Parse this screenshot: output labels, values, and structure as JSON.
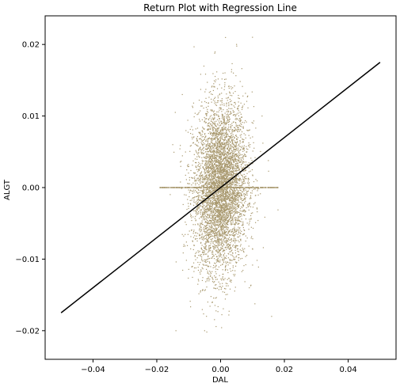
{
  "chart_data": {
    "type": "scatter",
    "title": "Return Plot with Regression Line",
    "xlabel": "DAL",
    "ylabel": "ALGT",
    "xlim": [
      -0.055,
      0.055
    ],
    "ylim": [
      -0.024,
      0.024
    ],
    "xticks": [
      -0.04,
      -0.02,
      0.0,
      0.02,
      0.04
    ],
    "xtick_labels": [
      "−0.04",
      "−0.02",
      "0.00",
      "0.02",
      "0.04"
    ],
    "yticks": [
      -0.02,
      -0.01,
      0.0,
      0.01,
      0.02
    ],
    "ytick_labels": [
      "−0.02",
      "−0.01",
      "0.00",
      "0.01",
      "0.02"
    ],
    "grid": false,
    "colors": {
      "points": "#a8986e",
      "regression_line": "#000000"
    },
    "series": [
      {
        "type": "scatter",
        "distribution": "dense cloud of daily returns centered near (0, 0), DAL roughly -0.02 to 0.02, ALGT roughly -0.021 to 0.021, with a horizontal band of points at ALGT = 0",
        "points": [
          [
            0.0,
            0.0
          ],
          [
            0.001,
            0.004
          ],
          [
            -0.001,
            -0.004
          ],
          [
            0.002,
            0.008
          ],
          [
            -0.002,
            -0.008
          ],
          [
            0.003,
            0.012
          ],
          [
            -0.003,
            -0.012
          ],
          [
            0.004,
            0.016
          ],
          [
            -0.004,
            -0.016
          ],
          [
            0.005,
            0.02
          ],
          [
            -0.005,
            -0.02
          ],
          [
            0.01,
            0.021
          ],
          [
            -0.012,
            0.013
          ],
          [
            -0.015,
            0.006
          ],
          [
            0.013,
            0.01
          ],
          [
            -0.019,
            0.0
          ],
          [
            0.018,
            0.0
          ],
          [
            -0.014,
            -0.02
          ],
          [
            0.016,
            -0.018
          ],
          [
            0.009,
            -0.014
          ]
        ]
      },
      {
        "type": "line",
        "x": [
          -0.05,
          0.05
        ],
        "y": [
          -0.0175,
          0.0175
        ]
      }
    ]
  }
}
